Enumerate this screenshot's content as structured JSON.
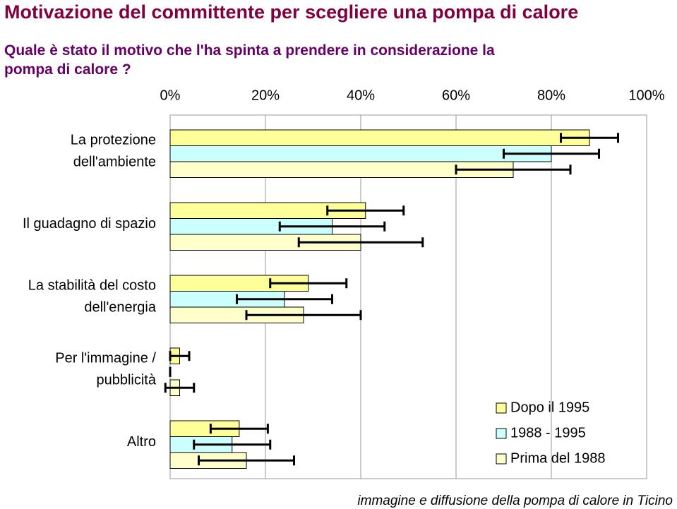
{
  "chart_data": {
    "type": "bar",
    "orientation": "horizontal",
    "title": "Motivazione del committente per scegliere una pompa di calore",
    "subtitle": "Quale è stato il motivo che l'ha spinta a prendere in considerazione la pompa di calore ?",
    "footnote": "immagine e diffusione della pompa di calore in Ticino",
    "categories": [
      [
        "La protezione",
        "dell'ambiente"
      ],
      [
        "Il guadagno di spazio"
      ],
      [
        "La stabilità del costo",
        "dell'energia"
      ],
      [
        "Per l'immagine /",
        "pubblicità"
      ],
      [
        "Altro"
      ]
    ],
    "series": [
      {
        "name": "Dopo il 1995",
        "color": "#ffff99",
        "values": [
          88,
          41,
          29,
          2,
          14.5
        ],
        "errors": [
          6,
          8,
          8,
          2,
          6
        ]
      },
      {
        "name": "1988 - 1995",
        "color": "#ccffff",
        "values": [
          80,
          34,
          24,
          0,
          13
        ],
        "errors": [
          10,
          11,
          10,
          0,
          8
        ]
      },
      {
        "name": "Prima del 1988",
        "color": "#ffffcc",
        "values": [
          72,
          40,
          28,
          2,
          16
        ],
        "errors": [
          12,
          13,
          12,
          3,
          10
        ]
      }
    ],
    "xlim": [
      0,
      100
    ],
    "xticks": [
      {
        "value": 0,
        "label": "0%"
      },
      {
        "value": 20,
        "label": "20%"
      },
      {
        "value": 40,
        "label": "40%"
      },
      {
        "value": 60,
        "label": "60%"
      },
      {
        "value": 80,
        "label": "80%"
      },
      {
        "value": 100,
        "label": "100%"
      }
    ],
    "grid": true,
    "legend": "lower right"
  }
}
